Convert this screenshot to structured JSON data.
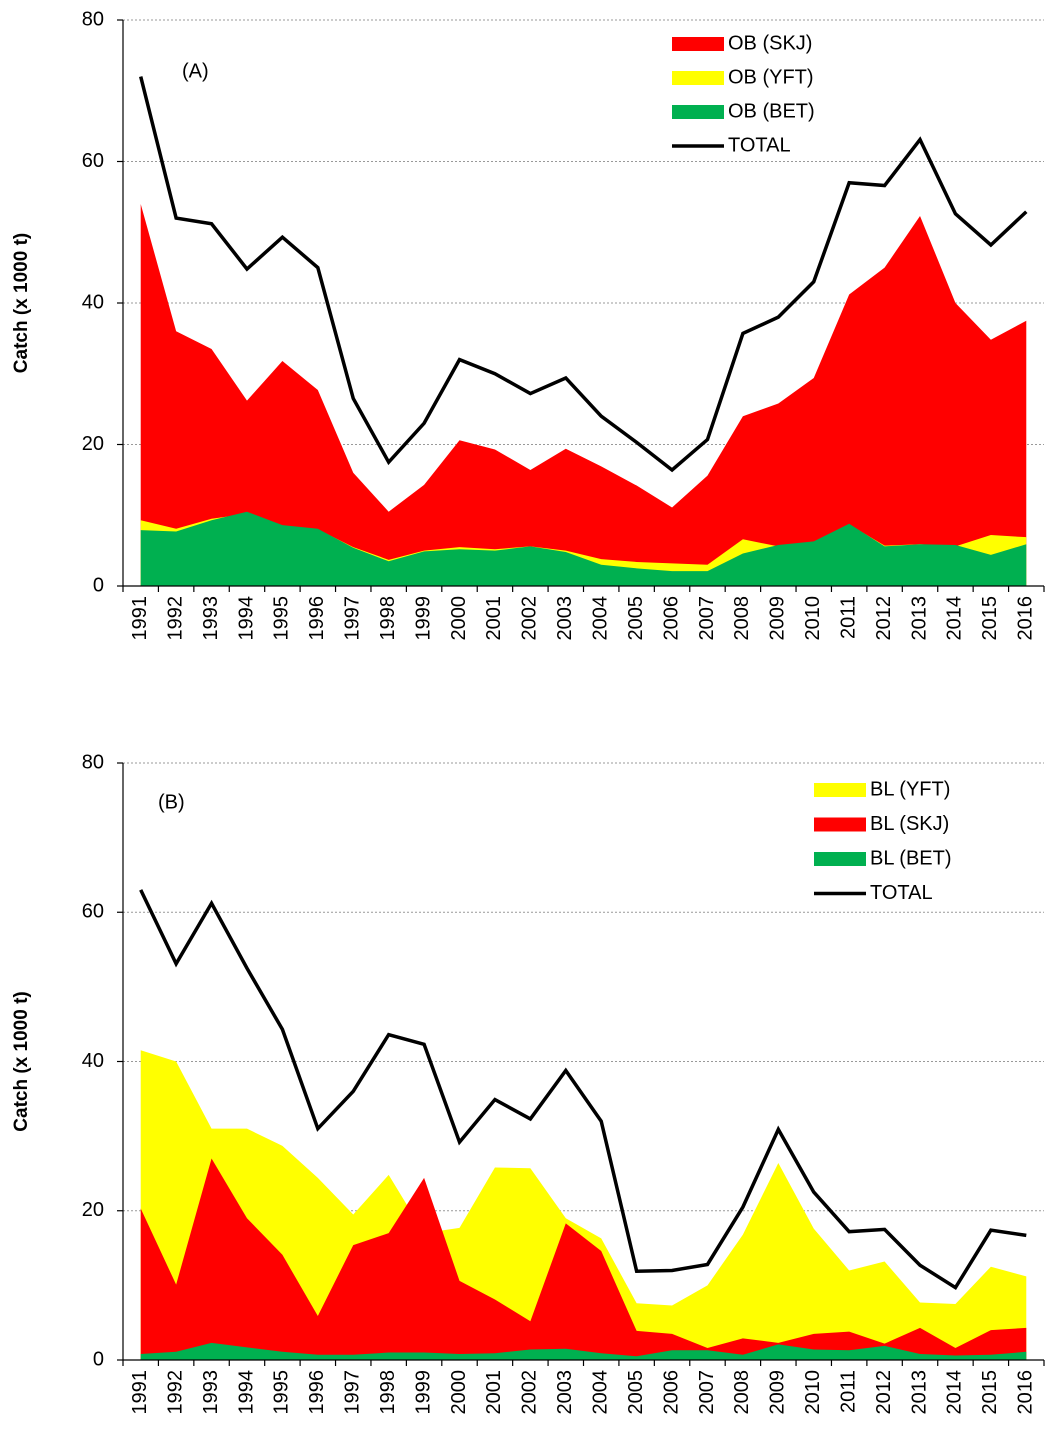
{
  "chart_data": [
    {
      "type": "area",
      "annotation": "(A)",
      "ylabel": "Catch (x 1000 t)",
      "categories": [
        "1991",
        "1992",
        "1993",
        "1994",
        "1995",
        "1996",
        "1997",
        "1998",
        "1999",
        "2000",
        "2001",
        "2002",
        "2003",
        "2004",
        "2005",
        "2006",
        "2007",
        "2008",
        "2009",
        "2010",
        "2011",
        "2012",
        "2013",
        "2014",
        "2015",
        "2016"
      ],
      "ylim": [
        0,
        80
      ],
      "yticks": [
        0,
        20,
        40,
        60,
        80
      ],
      "grid": true,
      "legend": "upper right",
      "series": [
        {
          "name": "OB (SKJ)",
          "color": "#ff0000",
          "values": [
            54,
            36,
            33.5,
            26.2,
            31.8,
            27.7,
            16,
            10.5,
            14.3,
            20.6,
            19.3,
            16.4,
            19.4,
            16.9,
            14.2,
            11.1,
            15.6,
            24,
            25.8,
            29.4,
            41.2,
            45,
            52.3,
            40,
            34.8,
            37.5
          ]
        },
        {
          "name": "OB (YFT)",
          "color": "#ffff00",
          "values": [
            9.3,
            8.1,
            9.5,
            10.2,
            8.5,
            8,
            5.5,
            3.7,
            5,
            5.5,
            5.2,
            5.6,
            5,
            3.8,
            3.4,
            3.2,
            3,
            6.6,
            5.6,
            6.2,
            8.7,
            5.7,
            5.9,
            5.6,
            7.2,
            6.9
          ]
        },
        {
          "name": "OB (BET)",
          "color": "#00b050",
          "values": [
            7.9,
            7.7,
            9.3,
            10.5,
            8.6,
            8.1,
            5.4,
            3.5,
            4.9,
            5.2,
            5,
            5.6,
            4.8,
            3,
            2.5,
            2.1,
            2.1,
            4.6,
            5.8,
            6.3,
            8.8,
            5.6,
            5.9,
            5.8,
            4.4,
            5.9
          ]
        },
        {
          "name": "TOTAL",
          "color": "#000000",
          "type": "line",
          "values": [
            72,
            52,
            51.2,
            44.8,
            49.3,
            45,
            26.5,
            17.5,
            23,
            32,
            30,
            27.2,
            29.4,
            24,
            20.3,
            16.4,
            20.7,
            35.7,
            38,
            43,
            57,
            56.6,
            63.1,
            52.6,
            48.2,
            52.9
          ]
        }
      ]
    },
    {
      "type": "area",
      "annotation": "(B)",
      "ylabel": "Catch (x 1000 t)",
      "categories": [
        "1991",
        "1992",
        "1993",
        "1994",
        "1995",
        "1996",
        "1997",
        "1998",
        "1999",
        "2000",
        "2001",
        "2002",
        "2003",
        "2004",
        "2005",
        "2006",
        "2007",
        "2008",
        "2009",
        "2010",
        "2011",
        "2012",
        "2013",
        "2014",
        "2015",
        "2016"
      ],
      "ylim": [
        0,
        80
      ],
      "yticks": [
        0,
        20,
        40,
        60,
        80
      ],
      "grid": true,
      "legend": "upper right",
      "series": [
        {
          "name": "BL (YFT)",
          "color": "#ffff00",
          "values": [
            41.5,
            40,
            31,
            31,
            28.7,
            24.4,
            19.5,
            24.8,
            17,
            17.7,
            25.8,
            25.7,
            19,
            16.3,
            7.6,
            7.3,
            10,
            16.8,
            26.4,
            17.6,
            12,
            13.2,
            7.7,
            7.5,
            12.5,
            11.2
          ]
        },
        {
          "name": "BL (SKJ)",
          "color": "#ff0000",
          "values": [
            20.3,
            10.1,
            27,
            19,
            14.1,
            5.9,
            15.4,
            17,
            24.4,
            10.6,
            8.1,
            5.2,
            18.3,
            14.6,
            3.9,
            3.5,
            1.6,
            2.9,
            2.3,
            3.5,
            3.8,
            2.2,
            4.3,
            1.6,
            4,
            4.3
          ]
        },
        {
          "name": "BL (BET)",
          "color": "#00b050",
          "values": [
            0.8,
            1.1,
            2.3,
            1.7,
            1.1,
            0.7,
            0.7,
            1,
            1,
            0.8,
            0.9,
            1.4,
            1.5,
            0.9,
            0.5,
            1.3,
            1.3,
            0.7,
            2.1,
            1.4,
            1.3,
            1.9,
            0.8,
            0.6,
            0.7,
            1.1
          ]
        },
        {
          "name": "TOTAL",
          "color": "#000000",
          "type": "line",
          "values": [
            63,
            53.1,
            61.2,
            52.5,
            44.3,
            31,
            36,
            43.6,
            42.3,
            29.2,
            34.9,
            32.3,
            38.8,
            32,
            11.9,
            12,
            12.8,
            20.5,
            30.9,
            22.5,
            17.2,
            17.5,
            12.7,
            9.7,
            17.4,
            16.7
          ]
        }
      ]
    }
  ]
}
